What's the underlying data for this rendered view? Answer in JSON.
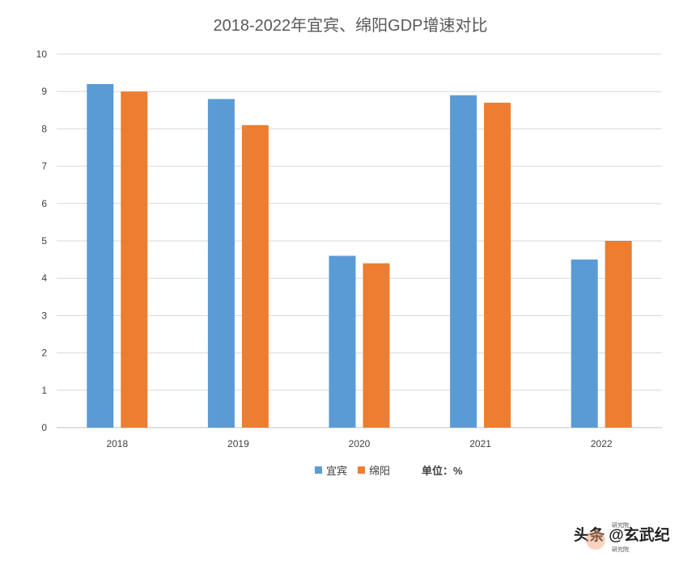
{
  "chart_data": {
    "type": "bar",
    "title": "2018-2022年宜宾、绵阳GDP增速对比",
    "categories": [
      "2018",
      "2019",
      "2020",
      "2021",
      "2022"
    ],
    "series": [
      {
        "name": "宜宾",
        "color": "#5B9BD5",
        "values": [
          9.2,
          8.8,
          4.6,
          8.9,
          4.5
        ]
      },
      {
        "name": "绵阳",
        "color": "#ED7D31",
        "values": [
          9.0,
          8.1,
          4.4,
          8.7,
          5.0
        ]
      }
    ],
    "ylim": [
      0,
      10
    ],
    "yticks": [
      "0",
      "1",
      "2",
      "3",
      "4",
      "5",
      "6",
      "7",
      "8",
      "9",
      "10"
    ],
    "grid": true,
    "xlabel": "",
    "ylabel": "",
    "unit_label": "单位：%"
  },
  "watermark": {
    "text": "头条 @玄武纪",
    "logo_text": "研究院",
    "logo_small": "研究院"
  }
}
